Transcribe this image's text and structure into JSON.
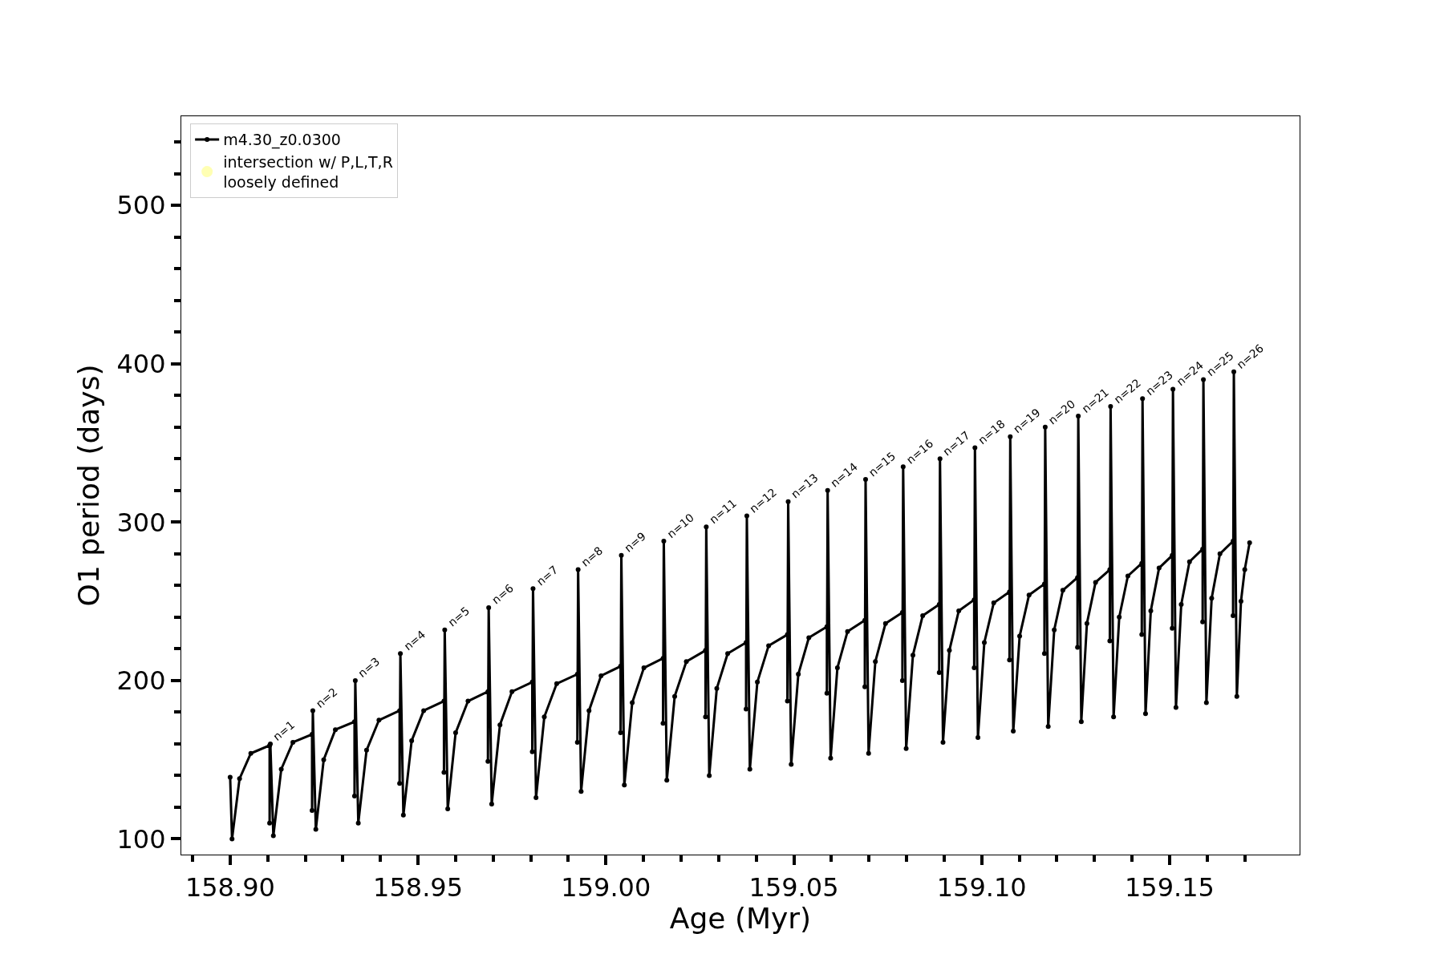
{
  "chart_data": {
    "type": "line",
    "xlabel": "Age (Myr)",
    "ylabel": "O1 period (days)",
    "xlim": [
      158.887,
      159.1846
    ],
    "ylim": [
      90.1,
      556.3
    ],
    "xticks": [
      {
        "value": 158.89,
        "label": null
      },
      {
        "value": 158.9,
        "label": "158.90"
      },
      {
        "value": 158.91,
        "label": null
      },
      {
        "value": 158.92,
        "label": null
      },
      {
        "value": 158.93,
        "label": null
      },
      {
        "value": 158.94,
        "label": null
      },
      158.95,
      {
        "value": 158.96,
        "label": null
      },
      {
        "value": 158.97,
        "label": null
      },
      {
        "value": 158.98,
        "label": null
      },
      {
        "value": 158.99,
        "label": null
      },
      {
        "value": 159.0,
        "label": "159.00"
      },
      {
        "value": 159.01,
        "label": null
      },
      {
        "value": 159.02,
        "label": null
      },
      {
        "value": 159.03,
        "label": null
      },
      {
        "value": 159.04,
        "label": null
      },
      159.05,
      {
        "value": 159.06,
        "label": null
      },
      {
        "value": 159.07,
        "label": null
      },
      {
        "value": 159.08,
        "label": null
      },
      {
        "value": 159.09,
        "label": null
      },
      {
        "value": 159.1,
        "label": "159.10"
      },
      {
        "value": 159.11,
        "label": null
      },
      {
        "value": 159.12,
        "label": null
      },
      {
        "value": 159.13,
        "label": null
      },
      {
        "value": 159.14,
        "label": null
      },
      159.15,
      {
        "value": 159.16,
        "label": null
      },
      {
        "value": 159.17,
        "label": null
      }
    ],
    "yticks": [
      100,
      {
        "value": 120,
        "label": null
      },
      {
        "value": 140,
        "label": null
      },
      {
        "value": 160,
        "label": null
      },
      {
        "value": 180,
        "label": null
      },
      200,
      {
        "value": 220,
        "label": null
      },
      {
        "value": 240,
        "label": null
      },
      {
        "value": 260,
        "label": null
      },
      {
        "value": 280,
        "label": null
      },
      300,
      {
        "value": 320,
        "label": null
      },
      {
        "value": 340,
        "label": null
      },
      {
        "value": 360,
        "label": null
      },
      {
        "value": 380,
        "label": null
      },
      400,
      {
        "value": 420,
        "label": null
      },
      {
        "value": 440,
        "label": null
      },
      {
        "value": 460,
        "label": null
      },
      {
        "value": 480,
        "label": null
      },
      500,
      {
        "value": 520,
        "label": null
      },
      {
        "value": 540,
        "label": null
      }
    ],
    "legend": "top left",
    "series": [
      {
        "name": "m4.30_z0.0300",
        "color": "#000000",
        "marker": "circle",
        "line_style": "solid",
        "x": [
          158.9,
          158.9005,
          158.9025,
          158.9055,
          158.9105,
          158.9105,
          158.9107,
          158.9115,
          158.9136,
          158.9167,
          158.9218,
          158.9218,
          158.922,
          158.9228,
          158.9249,
          158.928,
          158.9331,
          158.9331,
          158.9333,
          158.9341,
          158.9363,
          158.9396,
          158.9451,
          158.9451,
          158.9453,
          158.9461,
          158.9483,
          158.9515,
          158.9569,
          158.9569,
          158.9571,
          158.9579,
          158.96,
          158.9633,
          158.9686,
          158.9686,
          158.9688,
          158.9696,
          158.9718,
          158.975,
          158.9804,
          158.9804,
          158.9806,
          158.9814,
          158.9836,
          158.9869,
          158.9924,
          158.9924,
          158.9926,
          158.9934,
          158.9955,
          158.9987,
          159.0039,
          159.0039,
          159.0041,
          159.0049,
          159.007,
          159.0101,
          159.0152,
          159.0152,
          159.0154,
          159.0162,
          159.0183,
          159.0214,
          159.0265,
          159.0265,
          159.0267,
          159.0275,
          159.0295,
          159.0324,
          159.0373,
          159.0373,
          159.0375,
          159.0383,
          159.0403,
          159.0433,
          159.0483,
          159.0483,
          159.0485,
          159.0493,
          159.0512,
          159.054,
          159.0588,
          159.0588,
          159.059,
          159.0598,
          159.0616,
          159.0643,
          159.0689,
          159.0689,
          159.0691,
          159.0699,
          159.0717,
          159.0744,
          159.0789,
          159.0789,
          159.0791,
          159.0799,
          159.0817,
          159.0843,
          159.0887,
          159.0887,
          159.0889,
          159.0897,
          159.0914,
          159.0939,
          159.098,
          159.098,
          159.0982,
          159.099,
          159.1007,
          159.1032,
          159.1074,
          159.1074,
          159.1076,
          159.1084,
          159.1101,
          159.1126,
          159.1167,
          159.1167,
          159.1169,
          159.1177,
          159.1193,
          159.1216,
          159.1255,
          159.1255,
          159.1257,
          159.1265,
          159.128,
          159.1303,
          159.1341,
          159.1341,
          159.1343,
          159.1351,
          159.1366,
          159.1389,
          159.1426,
          159.1426,
          159.1428,
          159.1436,
          159.145,
          159.1472,
          159.1507,
          159.1507,
          159.1509,
          159.1517,
          159.1531,
          159.1553,
          159.1588,
          159.1588,
          159.159,
          159.1598,
          159.1612,
          159.1634,
          159.1669,
          159.1669,
          159.1671,
          159.1679,
          159.169,
          159.17,
          159.1713
        ],
        "values": [
          139,
          100,
          138,
          154,
          159,
          110,
          160,
          102,
          144,
          161,
          166,
          118,
          181,
          106,
          150,
          169,
          174,
          127,
          200,
          110,
          156,
          175,
          181,
          135,
          217,
          115,
          162,
          181,
          187,
          142,
          232,
          119,
          167,
          187,
          193,
          149,
          246,
          122,
          172,
          193,
          199,
          155,
          258,
          126,
          177,
          198,
          204,
          161,
          270,
          130,
          181,
          203,
          209,
          167,
          279,
          134,
          186,
          208,
          214,
          173,
          288,
          137,
          190,
          212,
          219,
          177,
          297,
          140,
          195,
          217,
          224,
          182,
          304,
          144,
          199,
          222,
          229,
          187,
          313,
          147,
          204,
          227,
          234,
          192,
          320,
          151,
          208,
          231,
          238,
          196,
          327,
          154,
          212,
          236,
          243,
          200,
          335,
          157,
          216,
          241,
          248,
          205,
          340,
          161,
          219,
          244,
          251,
          208,
          347,
          164,
          224,
          249,
          256,
          213,
          354,
          168,
          228,
          254,
          261,
          217,
          360,
          171,
          232,
          257,
          265,
          221,
          367,
          174,
          236,
          262,
          270,
          225,
          373,
          177,
          240,
          266,
          274,
          229,
          378,
          179,
          244,
          271,
          279,
          233,
          384,
          183,
          248,
          275,
          283,
          237,
          390,
          186,
          252,
          280,
          288,
          241,
          395,
          190,
          250,
          270,
          287
        ]
      },
      {
        "name": "intersection w/ P,L,T,R\nloosely defined",
        "color": "#ffffa0",
        "type": "scatter",
        "marker": "circle"
      }
    ],
    "annotations": [
      {
        "text": "n=1",
        "x": 158.9107,
        "y": 160
      },
      {
        "text": "n=2",
        "x": 158.922,
        "y": 181
      },
      {
        "text": "n=3",
        "x": 158.9333,
        "y": 200
      },
      {
        "text": "n=4",
        "x": 158.9453,
        "y": 217
      },
      {
        "text": "n=5",
        "x": 158.9571,
        "y": 232
      },
      {
        "text": "n=6",
        "x": 158.9688,
        "y": 246
      },
      {
        "text": "n=7",
        "x": 158.9806,
        "y": 258
      },
      {
        "text": "n=8",
        "x": 158.9926,
        "y": 270
      },
      {
        "text": "n=9",
        "x": 159.0041,
        "y": 279
      },
      {
        "text": "n=10",
        "x": 159.0154,
        "y": 288
      },
      {
        "text": "n=11",
        "x": 159.0267,
        "y": 297
      },
      {
        "text": "n=12",
        "x": 159.0375,
        "y": 304
      },
      {
        "text": "n=13",
        "x": 159.0485,
        "y": 313
      },
      {
        "text": "n=14",
        "x": 159.059,
        "y": 320
      },
      {
        "text": "n=15",
        "x": 159.0691,
        "y": 327
      },
      {
        "text": "n=16",
        "x": 159.0791,
        "y": 335
      },
      {
        "text": "n=17",
        "x": 159.0889,
        "y": 340
      },
      {
        "text": "n=18",
        "x": 159.0982,
        "y": 347
      },
      {
        "text": "n=19",
        "x": 159.1076,
        "y": 354
      },
      {
        "text": "n=20",
        "x": 159.1169,
        "y": 360
      },
      {
        "text": "n=21",
        "x": 159.1257,
        "y": 367
      },
      {
        "text": "n=22",
        "x": 159.1343,
        "y": 373
      },
      {
        "text": "n=23",
        "x": 159.1428,
        "y": 378
      },
      {
        "text": "n=24",
        "x": 159.1509,
        "y": 384
      },
      {
        "text": "n=25",
        "x": 159.159,
        "y": 390
      },
      {
        "text": "n=26",
        "x": 159.1671,
        "y": 395
      }
    ]
  }
}
